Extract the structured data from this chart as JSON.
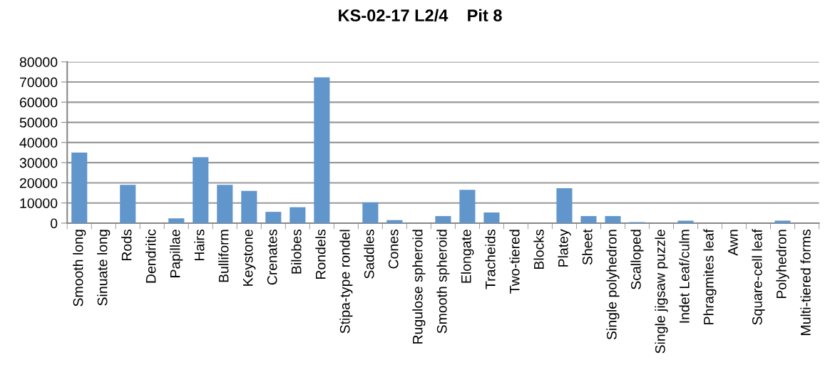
{
  "chart_data": {
    "type": "bar",
    "title": "KS-02-17 L2/4    Pit 8",
    "categories": [
      "Smooth long",
      "Sinuate long",
      "Rods",
      "Dendritic",
      "Papillae",
      "Hairs",
      "Bulliform",
      "Keystone",
      "Crenates",
      "Bilobes",
      "Rondels",
      "Stipa-type rondel",
      "Saddles",
      "Cones",
      "Rugulose spheroid",
      "Smooth spheroid",
      "Elongate",
      "Tracheids",
      "Two-tiered",
      "Blocks",
      "Platey",
      "Sheet",
      "Single polyhedron",
      "Scalloped",
      "Single jigsaw puzzle",
      "Indet Leaf/culm",
      "Phragmites leaf",
      "Awn",
      "Square-cell leaf",
      "Polyhedron",
      "Multi-tiered forms"
    ],
    "values": [
      35000,
      0,
      19000,
      0,
      2400,
      32700,
      19000,
      16000,
      5600,
      7900,
      72300,
      0,
      10300,
      1500,
      0,
      3500,
      16500,
      5300,
      0,
      0,
      17300,
      3500,
      3500,
      500,
      0,
      1200,
      0,
      0,
      0,
      1200,
      0
    ],
    "color": "#6096cc",
    "ylim": [
      0,
      80000
    ],
    "yticks": [
      0,
      10000,
      20000,
      30000,
      40000,
      50000,
      60000,
      70000,
      80000
    ],
    "grid": "y"
  }
}
